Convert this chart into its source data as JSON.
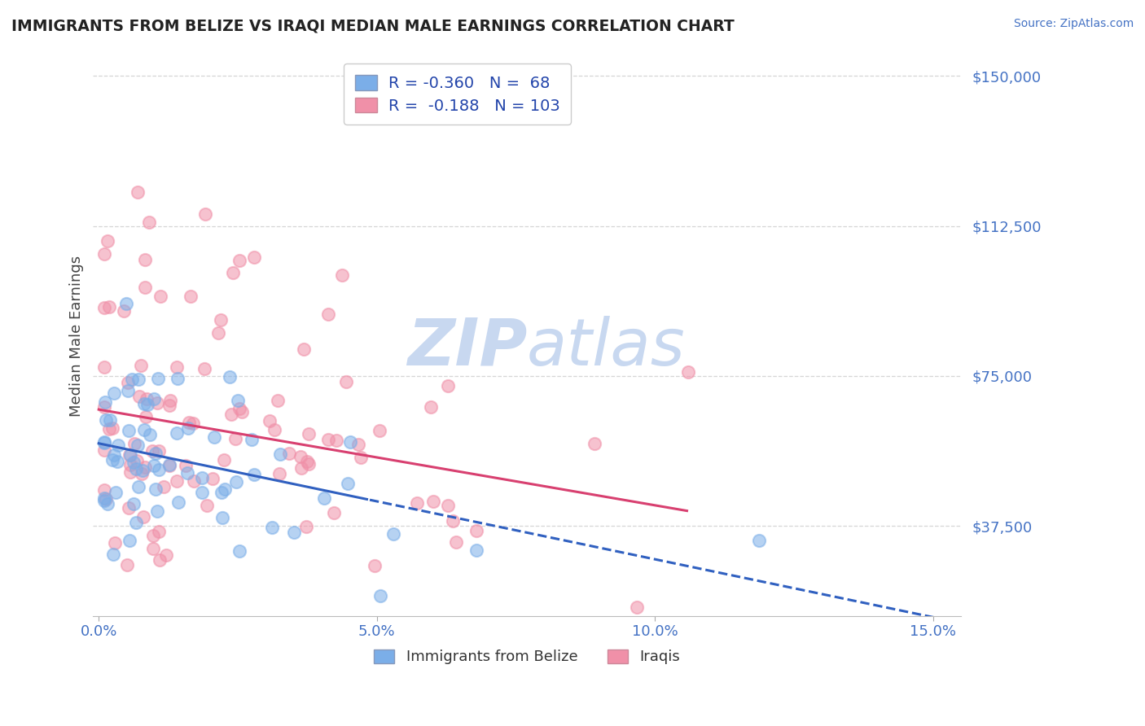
{
  "title": "IMMIGRANTS FROM BELIZE VS IRAQI MEDIAN MALE EARNINGS CORRELATION CHART",
  "source": "Source: ZipAtlas.com",
  "ylabel": "Median Male Earnings",
  "xlim": [
    -0.001,
    0.155
  ],
  "ylim": [
    15000,
    155000
  ],
  "xticks": [
    0.0,
    0.05,
    0.1,
    0.15
  ],
  "xtick_labels": [
    "0.0%",
    "5.0%",
    "10.0%",
    "15.0%"
  ],
  "yticks": [
    37500,
    75000,
    112500,
    150000
  ],
  "ytick_labels": [
    "$37,500",
    "$75,000",
    "$112,500",
    "$150,000"
  ],
  "belize_R": -0.36,
  "belize_N": 68,
  "iraqi_R": -0.188,
  "iraqi_N": 103,
  "belize_color": "#7baee8",
  "iraqi_color": "#f090a8",
  "belize_line_color": "#3060c0",
  "iraqi_line_color": "#d84070",
  "title_color": "#222222",
  "axis_label_color": "#444444",
  "tick_label_color": "#4472c4",
  "source_color": "#4472c4",
  "watermark_color": "#c8d8f0",
  "background_color": "#ffffff",
  "grid_color": "#cccccc",
  "belize_seed": 77,
  "iraqi_seed": 55
}
